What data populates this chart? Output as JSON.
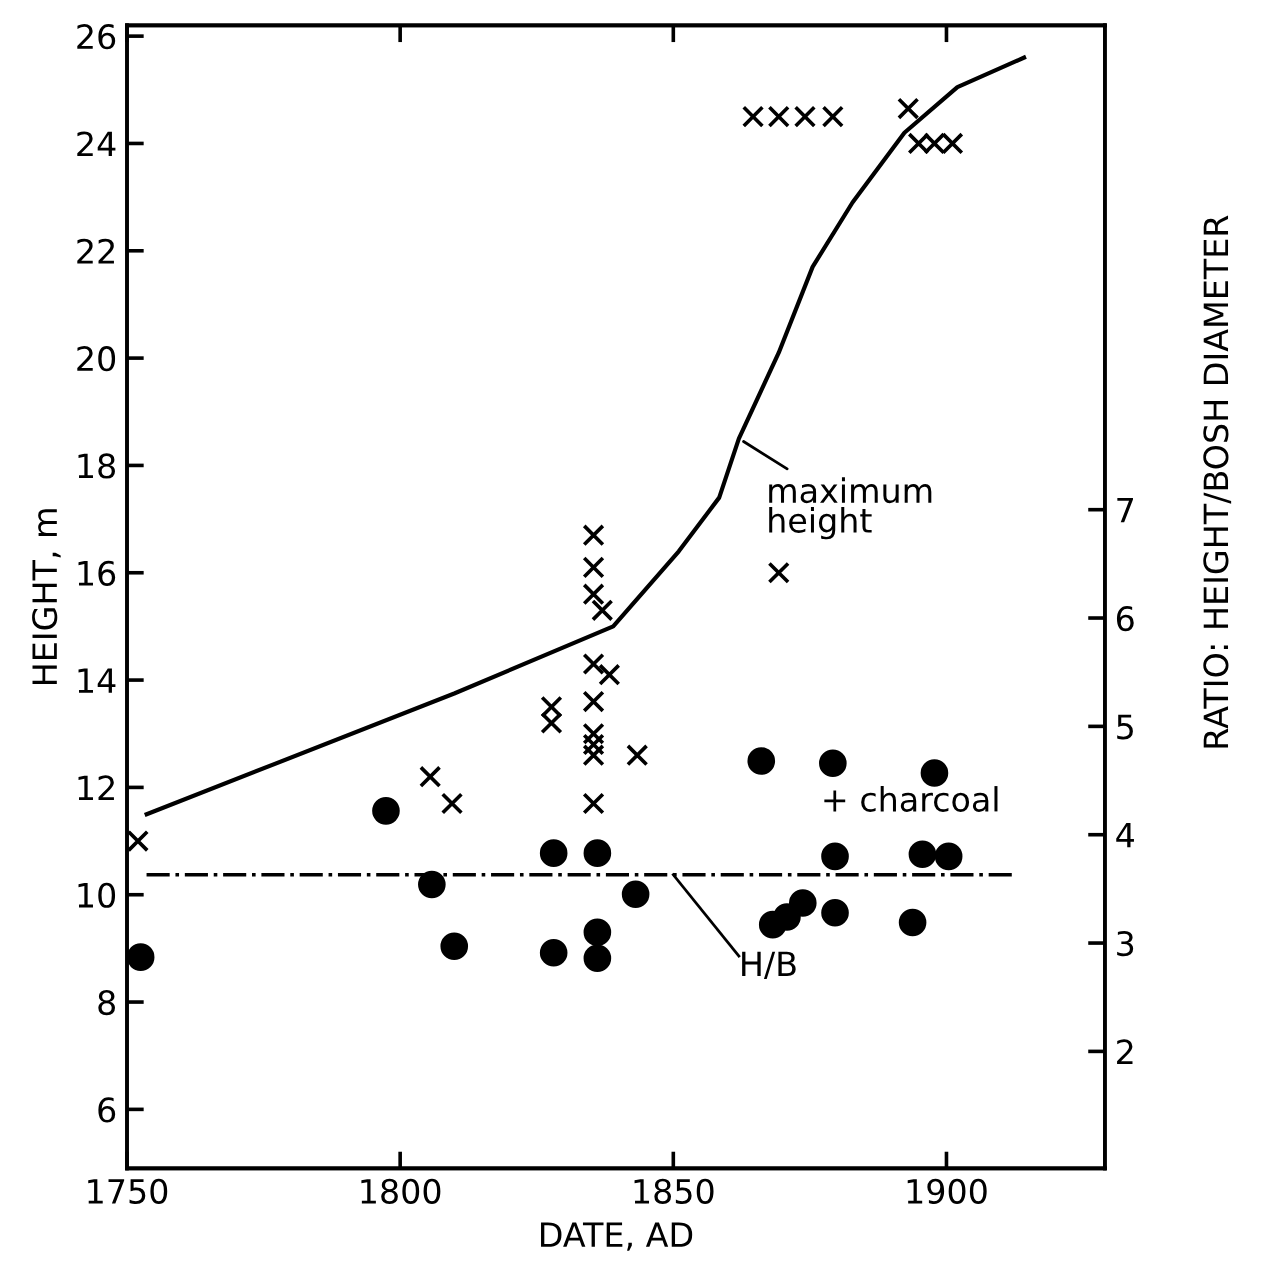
{
  "chart_data": {
    "type": "scatter",
    "xlabel": "DATE, AD",
    "ylabel": "HEIGHT, m",
    "y2label": "RATIO: HEIGHT/BOSH DIAMETER",
    "xlim": [
      1750,
      1929
    ],
    "xticks": [
      1750,
      1800,
      1850,
      1900
    ],
    "ylim": [
      4.9,
      26.2
    ],
    "yticks": [
      6,
      8,
      10,
      12,
      14,
      16,
      18,
      20,
      22,
      24,
      26
    ],
    "y2lim": [
      0.92,
      11.47
    ],
    "y2ticks": [
      2,
      3,
      4,
      5,
      6,
      7
    ],
    "grid": false,
    "legend": false,
    "series": [
      {
        "marker": "cross",
        "color": "#000000",
        "x": [
          1752,
          1805.5,
          1809.5,
          1827.7,
          1827.7,
          1835.4,
          1835.4,
          1835.4,
          1837,
          1835.4,
          1838.3,
          1835.4,
          1835.4,
          1835.4,
          1835.4,
          1835.4,
          1843.4,
          1864.6,
          1869.3,
          1874.1,
          1879.2,
          1893,
          1894.9,
          1897.8,
          1901.1,
          1869.3
        ],
        "values": [
          11.0,
          12.2,
          11.7,
          13.5,
          13.2,
          16.7,
          16.1,
          15.6,
          15.3,
          14.3,
          14.1,
          13.6,
          13.0,
          12.8,
          12.6,
          11.7,
          12.6,
          24.5,
          24.5,
          24.5,
          24.5,
          24.65,
          24.0,
          24.0,
          24.0,
          16.0
        ]
      },
      {
        "marker": "circle",
        "color": "#000000",
        "axis": "y2",
        "x": [
          1752.5,
          1797.4,
          1805.8,
          1809.9,
          1828.1,
          1828.1,
          1836.1,
          1836.1,
          1836.1,
          1843.1,
          1866.1,
          1879.2,
          1897.8,
          1879.6,
          1895.6,
          1900.4,
          1868.2,
          1870.8,
          1873.7,
          1879.6,
          1893.8
        ],
        "values": [
          2.87,
          4.22,
          3.54,
          2.97,
          3.83,
          2.91,
          3.83,
          3.1,
          2.86,
          3.45,
          4.68,
          4.66,
          4.57,
          3.8,
          3.82,
          3.8,
          3.17,
          3.24,
          3.37,
          3.28,
          3.19
        ]
      },
      {
        "type": "line",
        "marker": "none",
        "color": "#000000",
        "x": [
          1753.6,
          1809.9,
          1839,
          1851,
          1858.4,
          1862,
          1869.3,
          1875.5,
          1882.8,
          1892.3,
          1902,
          1914.2
        ],
        "values": [
          11.5,
          13.75,
          15.0,
          16.4,
          17.4,
          18.5,
          20.1,
          21.7,
          22.9,
          24.2,
          25.05,
          25.6
        ]
      }
    ],
    "ref_lines": [
      {
        "axis": "y2",
        "value": 3.63,
        "label": "H/B",
        "line_style": "dashdot",
        "color": "#000000"
      }
    ],
    "annotations": [
      {
        "text": "maximum\nheight",
        "x": 1862,
        "y": 18.5
      },
      "+ charcoal"
    ]
  }
}
